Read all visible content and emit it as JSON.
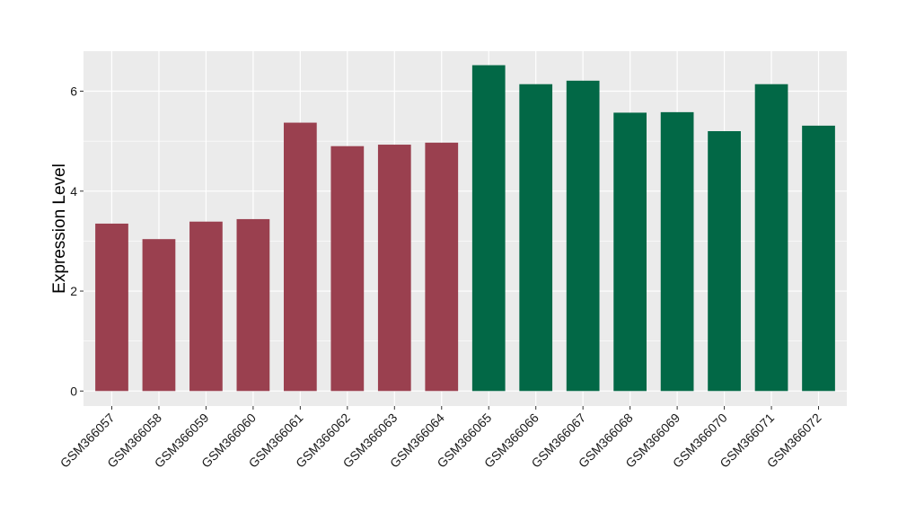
{
  "chart_data": {
    "type": "bar",
    "title": "",
    "xlabel": "",
    "ylabel": "Expression Level",
    "categories": [
      "GSM366057",
      "GSM366058",
      "GSM366059",
      "GSM366060",
      "GSM366061",
      "GSM366062",
      "GSM366063",
      "GSM366064",
      "GSM366065",
      "GSM366066",
      "GSM366067",
      "GSM366068",
      "GSM366069",
      "GSM366070",
      "GSM366071",
      "GSM366072"
    ],
    "values": [
      3.35,
      3.04,
      3.39,
      3.44,
      5.37,
      4.9,
      4.93,
      4.97,
      6.52,
      6.14,
      6.21,
      5.57,
      5.58,
      5.2,
      6.14,
      5.31
    ],
    "bar_colors": [
      "#9a404f",
      "#9a404f",
      "#9a404f",
      "#9a404f",
      "#9a404f",
      "#9a404f",
      "#9a404f",
      "#9a404f",
      "#026846",
      "#026846",
      "#026846",
      "#026846",
      "#026846",
      "#026846",
      "#026846",
      "#026846"
    ],
    "ylim": [
      -0.3,
      6.8
    ],
    "yticks": [
      0,
      2,
      4,
      6
    ],
    "ytick_labels": [
      "0",
      "2",
      "4",
      "6"
    ],
    "grid": true,
    "legend": false,
    "panel_background": "#ebebeb",
    "grid_color": "#ffffff"
  }
}
